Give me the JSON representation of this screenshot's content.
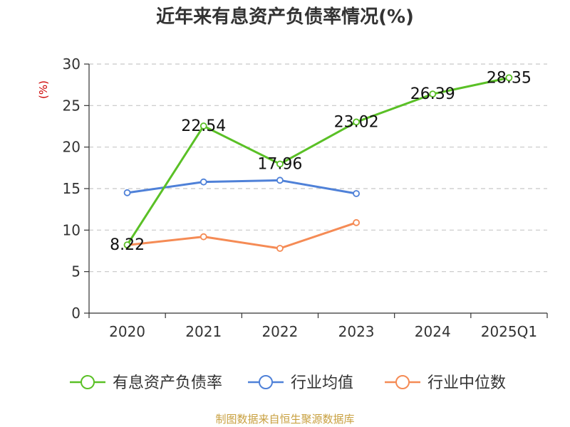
{
  "chart_data": {
    "type": "line",
    "title": "近年来有息资产负债率情况(%)",
    "ylabel": "(%)",
    "categories": [
      "2020",
      "2021",
      "2022",
      "2023",
      "2024",
      "2025Q1"
    ],
    "ylim": [
      0,
      30
    ],
    "yticks": [
      0,
      5,
      10,
      15,
      20,
      25,
      30
    ],
    "grid": true,
    "legend_position": "bottom",
    "series": [
      {
        "name": "有息资产负债率",
        "color": "#5ac026",
        "values": [
          8.22,
          22.54,
          17.96,
          23.02,
          26.39,
          28.35
        ],
        "labels": [
          "8.22",
          "22.54",
          "17.96",
          "23.02",
          "26.39",
          "28.35"
        ]
      },
      {
        "name": "行业均值",
        "color": "#4f81d8",
        "values": [
          14.5,
          15.8,
          16.0,
          14.4,
          null,
          null
        ]
      },
      {
        "name": "行业中位数",
        "color": "#f58b55",
        "values": [
          8.2,
          9.2,
          7.8,
          10.9,
          null,
          null
        ]
      }
    ]
  },
  "source": "制图数据来自恒生聚源数据库"
}
